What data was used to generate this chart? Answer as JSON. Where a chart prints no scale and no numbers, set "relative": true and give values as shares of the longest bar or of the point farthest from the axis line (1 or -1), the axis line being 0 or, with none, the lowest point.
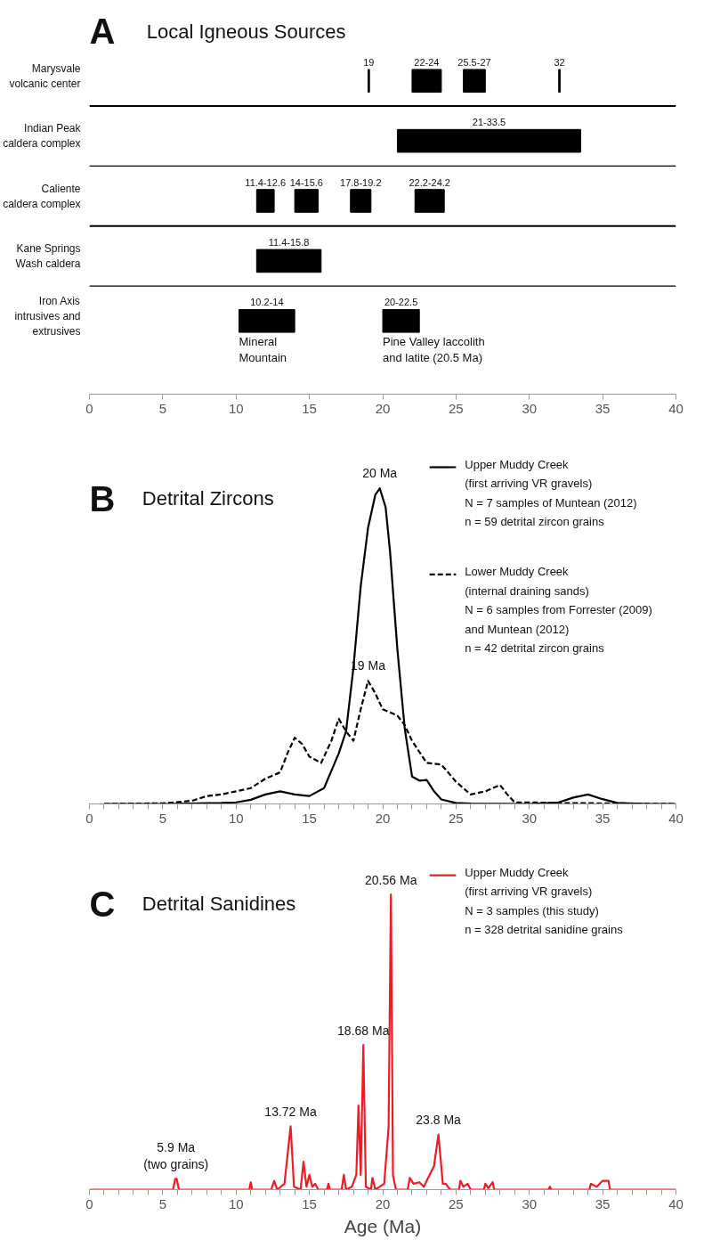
{
  "chart_data": [
    {
      "type": "bar",
      "orientation": "horizontal",
      "title": "A",
      "subtitle": "Local Igneous Sources",
      "categories": [
        "Marysvale volcanic center",
        "Indian Peak caldera complex",
        "Caliente caldera complex",
        "Kane Springs Wash caldera",
        "Iron Axis intrusives and extrusives"
      ],
      "series": [
        {
          "color": "#000000",
          "base": [
            19,
            21,
            11.4,
            11.4,
            10.2
          ],
          "values": [
            0.1,
            12.5,
            1.2,
            4.4,
            3.8
          ],
          "value_labels": [
            "19",
            "21-33.5",
            "11.4-12.6",
            "11.4-15.8",
            "10.2-14"
          ]
        },
        {
          "color": "#000000",
          "base": [
            22,
            null,
            14,
            null,
            20
          ],
          "values": [
            2,
            null,
            1.6,
            null,
            2.5
          ],
          "value_labels": [
            "22-24",
            null,
            "14-15.6",
            null,
            "20-22.5"
          ]
        },
        {
          "color": "#000000",
          "base": [
            25.5,
            null,
            17.8,
            null,
            null
          ],
          "values": [
            1.5,
            null,
            1.4,
            null,
            null
          ],
          "value_labels": [
            "25.5-27",
            null,
            "17.8-19.2",
            null,
            null
          ]
        },
        {
          "color": "#000000",
          "base": [
            32,
            null,
            22.2,
            null,
            null
          ],
          "values": [
            0.1,
            null,
            2,
            null,
            null
          ],
          "value_labels": [
            "32",
            null,
            "22.2-24.2",
            null,
            null
          ]
        }
      ],
      "xlim": [
        0,
        40
      ],
      "xticks": [
        0,
        5,
        10,
        15,
        20,
        25,
        30,
        35,
        40
      ],
      "tick_labels": "x",
      "annotations": [
        {
          "text": "Mineral\nMountain",
          "x": 10.2,
          "y": "Iron Axis intrusives and extrusives"
        },
        {
          "text": "Pine Valley laccolith\nand latite (20.5 Ma)",
          "x": 20,
          "y": "Iron Axis intrusives and extrusives"
        }
      ]
    },
    {
      "type": "line",
      "title": "B",
      "subtitle": "Detrital Zircons",
      "relative": true,
      "legend": "top right",
      "series": [
        {
          "name": "Upper Muddy Creek\n(first arriving VR gravels)\nN = 7 samples of Muntean (2012)\nn = 59 detrital zircon grains",
          "color": "#000000",
          "line_style": "solid",
          "x": [
            1,
            5,
            9,
            10,
            11,
            12,
            13,
            14,
            15,
            16,
            17,
            17.5,
            18,
            18.5,
            19,
            19.5,
            19.8,
            20.2,
            20.5,
            21,
            21.5,
            22,
            22.5,
            23,
            23.5,
            24,
            25,
            26,
            30,
            32,
            33,
            34,
            35,
            36,
            38,
            40
          ],
          "values": [
            0,
            0,
            0.003,
            0.005,
            0.013,
            0.03,
            0.04,
            0.03,
            0.025,
            0.05,
            0.16,
            0.23,
            0.43,
            0.69,
            0.875,
            0.98,
            1,
            0.94,
            0.8,
            0.49,
            0.24,
            0.087,
            0.074,
            0.076,
            0.04,
            0.014,
            0.003,
            0.001,
            0,
            0.005,
            0.02,
            0.03,
            0.015,
            0.003,
            0,
            0
          ]
        },
        {
          "name": "Lower Muddy Creek\n(internal draining sands)\nN = 6 samples from Forrester (2009)\nand Muntean (2012)\nn = 42 detrital zircon grains",
          "color": "#000000",
          "line_style": "dashed",
          "x": [
            1,
            5,
            7,
            8,
            9,
            10,
            11,
            12,
            13,
            13.5,
            14,
            14.5,
            15,
            15.8,
            16.5,
            17,
            17.5,
            18,
            18.5,
            19,
            19.5,
            20,
            20.5,
            21,
            21.5,
            22,
            23,
            24,
            25,
            26,
            27,
            28,
            28.5,
            29,
            30,
            32,
            35,
            40
          ],
          "values": [
            0,
            0.002,
            0.01,
            0.025,
            0.03,
            0.04,
            0.05,
            0.08,
            0.1,
            0.16,
            0.21,
            0.19,
            0.15,
            0.13,
            0.2,
            0.27,
            0.23,
            0.2,
            0.3,
            0.39,
            0.35,
            0.3,
            0.29,
            0.28,
            0.25,
            0.2,
            0.13,
            0.125,
            0.07,
            0.03,
            0.04,
            0.06,
            0.03,
            0.005,
            0.005,
            0.003,
            0.002,
            0
          ]
        }
      ],
      "xlim": [
        0,
        40
      ],
      "xticks": [
        0,
        {
          "value": 1,
          "label": null
        },
        {
          "value": 2,
          "label": null
        },
        {
          "value": 3,
          "label": null
        },
        {
          "value": 4,
          "label": null
        },
        5,
        {
          "value": 6,
          "label": null
        },
        {
          "value": 7,
          "label": null
        },
        {
          "value": 8,
          "label": null
        },
        {
          "value": 9,
          "label": null
        },
        10,
        {
          "value": 11,
          "label": null
        },
        {
          "value": 12,
          "label": null
        },
        {
          "value": 13,
          "label": null
        },
        {
          "value": 14,
          "label": null
        },
        15,
        {
          "value": 16,
          "label": null
        },
        {
          "value": 17,
          "label": null
        },
        {
          "value": 18,
          "label": null
        },
        {
          "value": 19,
          "label": null
        },
        20,
        {
          "value": 21,
          "label": null
        },
        {
          "value": 22,
          "label": null
        },
        {
          "value": 23,
          "label": null
        },
        {
          "value": 24,
          "label": null
        },
        25,
        {
          "value": 26,
          "label": null
        },
        {
          "value": 27,
          "label": null
        },
        {
          "value": 28,
          "label": null
        },
        {
          "value": 29,
          "label": null
        },
        30,
        {
          "value": 31,
          "label": null
        },
        {
          "value": 32,
          "label": null
        },
        {
          "value": 33,
          "label": null
        },
        {
          "value": 34,
          "label": null
        },
        35,
        {
          "value": 36,
          "label": null
        },
        {
          "value": 37,
          "label": null
        },
        {
          "value": 38,
          "label": null
        },
        {
          "value": 39,
          "label": null
        },
        40
      ],
      "annotations": [
        {
          "text": "20 Ma",
          "x": 19.8,
          "y": 1
        },
        {
          "text": "19 Ma",
          "x": 19,
          "y": 0.39
        }
      ]
    },
    {
      "type": "line",
      "title": "C",
      "subtitle": "Detrital Sanidines",
      "relative": true,
      "legend": "top right",
      "xlabel": "Age (Ma)",
      "series": [
        {
          "name": "Upper Muddy Creek\n(first arriving VR gravels)\nN = 3 samples (this study)\nn =  328 detrital sanidine grains",
          "color": "#ed1c24",
          "line_style": "solid",
          "x": [
            0,
            5.7,
            5.85,
            5.95,
            6.1,
            10.9,
            11,
            11.1,
            12.4,
            12.6,
            12.8,
            13.3,
            13.72,
            13.95,
            14.4,
            14.6,
            14.8,
            15,
            15.2,
            15.4,
            15.6,
            16.2,
            16.3,
            16.4,
            17.2,
            17.35,
            17.5,
            17.9,
            18.2,
            18.35,
            18.5,
            18.68,
            18.85,
            19.2,
            19.3,
            19.5,
            20.1,
            20.4,
            20.56,
            20.7,
            20.9,
            21.7,
            21.85,
            22.1,
            22.5,
            22.8,
            23.2,
            23.5,
            23.8,
            24.1,
            24.3,
            24.6,
            25.2,
            25.3,
            25.5,
            25.8,
            26,
            26.9,
            27,
            27.2,
            27.5,
            27.6,
            31.3,
            31.4,
            31.5,
            34.1,
            34.2,
            34.6,
            35,
            35.4,
            35.5,
            40
          ],
          "values": [
            0,
            0,
            0.037,
            0.037,
            0,
            0,
            0.025,
            0,
            0,
            0.03,
            0,
            0.02,
            0.215,
            0.01,
            0,
            0.095,
            0.01,
            0.05,
            0.01,
            0.02,
            0,
            0,
            0.02,
            0,
            0,
            0.05,
            0,
            0.01,
            0.05,
            0.285,
            0.05,
            0.49,
            0.01,
            0,
            0.04,
            0,
            0.02,
            0.21,
            1,
            0.05,
            0,
            0,
            0.04,
            0.02,
            0.025,
            0.01,
            0.05,
            0.08,
            0.187,
            0.02,
            0.02,
            0,
            0,
            0.03,
            0.01,
            0.02,
            0,
            0,
            0.02,
            0.005,
            0.025,
            0,
            0,
            0.01,
            0,
            0,
            0.02,
            0.01,
            0.03,
            0.03,
            0,
            0
          ]
        }
      ],
      "xlim": [
        0,
        40
      ],
      "xticks": [
        0,
        {
          "value": 1,
          "label": null
        },
        {
          "value": 2,
          "label": null
        },
        {
          "value": 3,
          "label": null
        },
        {
          "value": 4,
          "label": null
        },
        5,
        {
          "value": 6,
          "label": null
        },
        {
          "value": 7,
          "label": null
        },
        {
          "value": 8,
          "label": null
        },
        {
          "value": 9,
          "label": null
        },
        10,
        {
          "value": 11,
          "label": null
        },
        {
          "value": 12,
          "label": null
        },
        {
          "value": 13,
          "label": null
        },
        {
          "value": 14,
          "label": null
        },
        15,
        {
          "value": 16,
          "label": null
        },
        {
          "value": 17,
          "label": null
        },
        {
          "value": 18,
          "label": null
        },
        {
          "value": 19,
          "label": null
        },
        20,
        {
          "value": 21,
          "label": null
        },
        {
          "value": 22,
          "label": null
        },
        {
          "value": 23,
          "label": null
        },
        {
          "value": 24,
          "label": null
        },
        25,
        {
          "value": 26,
          "label": null
        },
        {
          "value": 27,
          "label": null
        },
        {
          "value": 28,
          "label": null
        },
        {
          "value": 29,
          "label": null
        },
        30,
        {
          "value": 31,
          "label": null
        },
        {
          "value": 32,
          "label": null
        },
        {
          "value": 33,
          "label": null
        },
        {
          "value": 34,
          "label": null
        },
        35,
        {
          "value": 36,
          "label": null
        },
        {
          "value": 37,
          "label": null
        },
        {
          "value": 38,
          "label": null
        },
        {
          "value": 39,
          "label": null
        },
        40
      ],
      "annotations": [
        {
          "text": "20.56 Ma",
          "x": 20.56,
          "y": 1
        },
        {
          "text": "18.68 Ma",
          "x": 18.68,
          "y": 0.49
        },
        {
          "text": "13.72 Ma",
          "x": 13.72,
          "y": 0.215
        },
        {
          "text": "23.8 Ma",
          "x": 23.8,
          "y": 0.187
        },
        {
          "text": "5.9 Ma\n(two grains)",
          "x": 5.9,
          "y": 0.037
        }
      ]
    }
  ]
}
